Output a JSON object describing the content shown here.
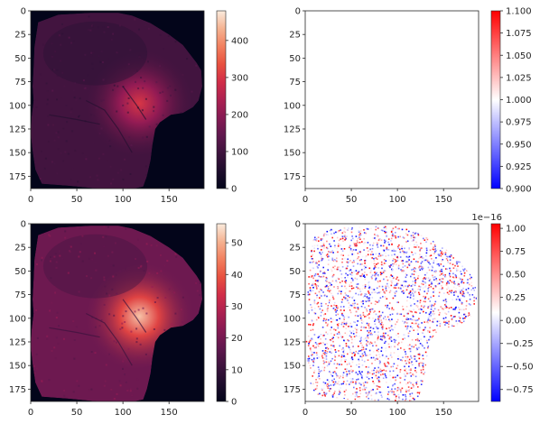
{
  "chart_data": [
    {
      "type": "heatmap",
      "title": "",
      "xlabel": "",
      "ylabel": "",
      "x_ticks": [
        "0",
        "50",
        "100",
        "150"
      ],
      "y_ticks": [
        "0",
        "25",
        "50",
        "75",
        "100",
        "125",
        "150",
        "175"
      ],
      "xlim": [
        0,
        188
      ],
      "ylim": [
        188,
        0
      ],
      "colormap": "rocket",
      "colorbar": {
        "range": [
          0,
          480
        ],
        "ticks": [
          "0",
          "100",
          "200",
          "300",
          "400"
        ],
        "ticks_values": [
          0,
          100,
          200,
          300,
          400
        ]
      },
      "description_values": {
        "background": 0,
        "tissue_typical": 120,
        "bright_region_peak": 300
      }
    },
    {
      "type": "heatmap",
      "title": "",
      "xlabel": "",
      "ylabel": "",
      "x_ticks": [
        "0",
        "50",
        "100",
        "150"
      ],
      "y_ticks": [
        "0",
        "25",
        "50",
        "75",
        "100",
        "125",
        "150",
        "175"
      ],
      "xlim": [
        0,
        188
      ],
      "ylim": [
        188,
        0
      ],
      "colormap": "bwr",
      "colorbar": {
        "range": [
          0.9,
          1.1
        ],
        "ticks": [
          "0.900",
          "0.925",
          "0.950",
          "0.975",
          "1.000",
          "1.025",
          "1.050",
          "1.075",
          "1.100"
        ],
        "ticks_values": [
          0.9,
          0.925,
          0.95,
          0.975,
          1.0,
          1.025,
          1.05,
          1.075,
          1.1
        ]
      },
      "uniform_value": 1.0
    },
    {
      "type": "heatmap",
      "title": "",
      "xlabel": "",
      "ylabel": "",
      "x_ticks": [
        "0",
        "50",
        "100",
        "150"
      ],
      "y_ticks": [
        "0",
        "25",
        "50",
        "75",
        "100",
        "125",
        "150",
        "175"
      ],
      "xlim": [
        0,
        188
      ],
      "ylim": [
        188,
        0
      ],
      "colormap": "rocket",
      "colorbar": {
        "range": [
          0,
          56
        ],
        "ticks": [
          "0",
          "10",
          "20",
          "30",
          "40",
          "50"
        ],
        "ticks_values": [
          0,
          10,
          20,
          30,
          40,
          50
        ]
      },
      "description_values": {
        "background": 0,
        "tissue_typical": 22,
        "bright_region_peak": 52
      }
    },
    {
      "type": "heatmap",
      "title": "",
      "xlabel": "",
      "ylabel": "",
      "x_ticks": [
        "0",
        "50",
        "100",
        "150"
      ],
      "y_ticks": [
        "0",
        "25",
        "50",
        "75",
        "100",
        "125",
        "150",
        "175"
      ],
      "xlim": [
        0,
        188
      ],
      "ylim": [
        188,
        0
      ],
      "colormap": "bwr",
      "colorbar": {
        "range": [
          -0.88,
          1.05
        ],
        "ticks": [
          "−0.75",
          "−0.50",
          "−0.25",
          "0.00",
          "0.25",
          "0.50",
          "0.75",
          "1.00"
        ],
        "ticks_values": [
          -0.75,
          -0.5,
          -0.25,
          0.0,
          0.25,
          0.5,
          0.75,
          1.0
        ],
        "offset_text": "1e−16"
      },
      "description_values": {
        "noise_min": -0.88,
        "noise_max": 1.05
      }
    }
  ]
}
